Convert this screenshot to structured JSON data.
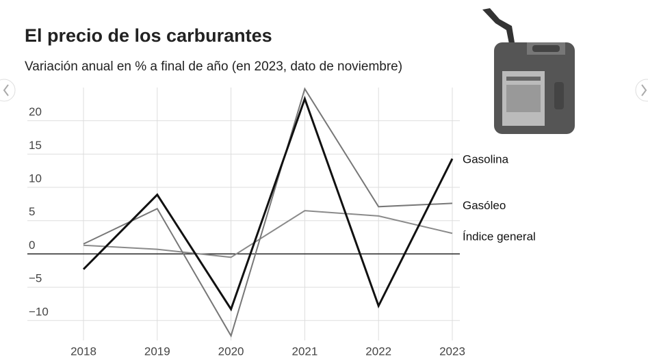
{
  "chart_data": {
    "type": "line",
    "title": "El precio de los carburantes",
    "subtitle": "Variación anual en % a final de año (en 2023, dato de noviembre)",
    "categories": [
      "2018",
      "2019",
      "2020",
      "2021",
      "2022",
      "2023"
    ],
    "series": [
      {
        "name": "Gasolina",
        "color": "#111111",
        "values": [
          -2.3,
          8.9,
          -8.3,
          23.3,
          -7.8,
          14.3
        ]
      },
      {
        "name": "Gasóleo",
        "color": "#777777",
        "values": [
          1.5,
          6.8,
          -12.3,
          24.8,
          7.1,
          7.6
        ]
      },
      {
        "name": "Índice general",
        "color": "#8a8a8a",
        "values": [
          1.3,
          0.7,
          -0.5,
          6.5,
          5.7,
          3.1
        ]
      }
    ],
    "ylim": [
      -13,
      25
    ],
    "yticks": [
      {
        "value": -10,
        "label": "−10"
      },
      {
        "value": -5,
        "label": "−5"
      },
      0,
      5,
      10,
      15,
      20
    ],
    "grid": true
  }
}
